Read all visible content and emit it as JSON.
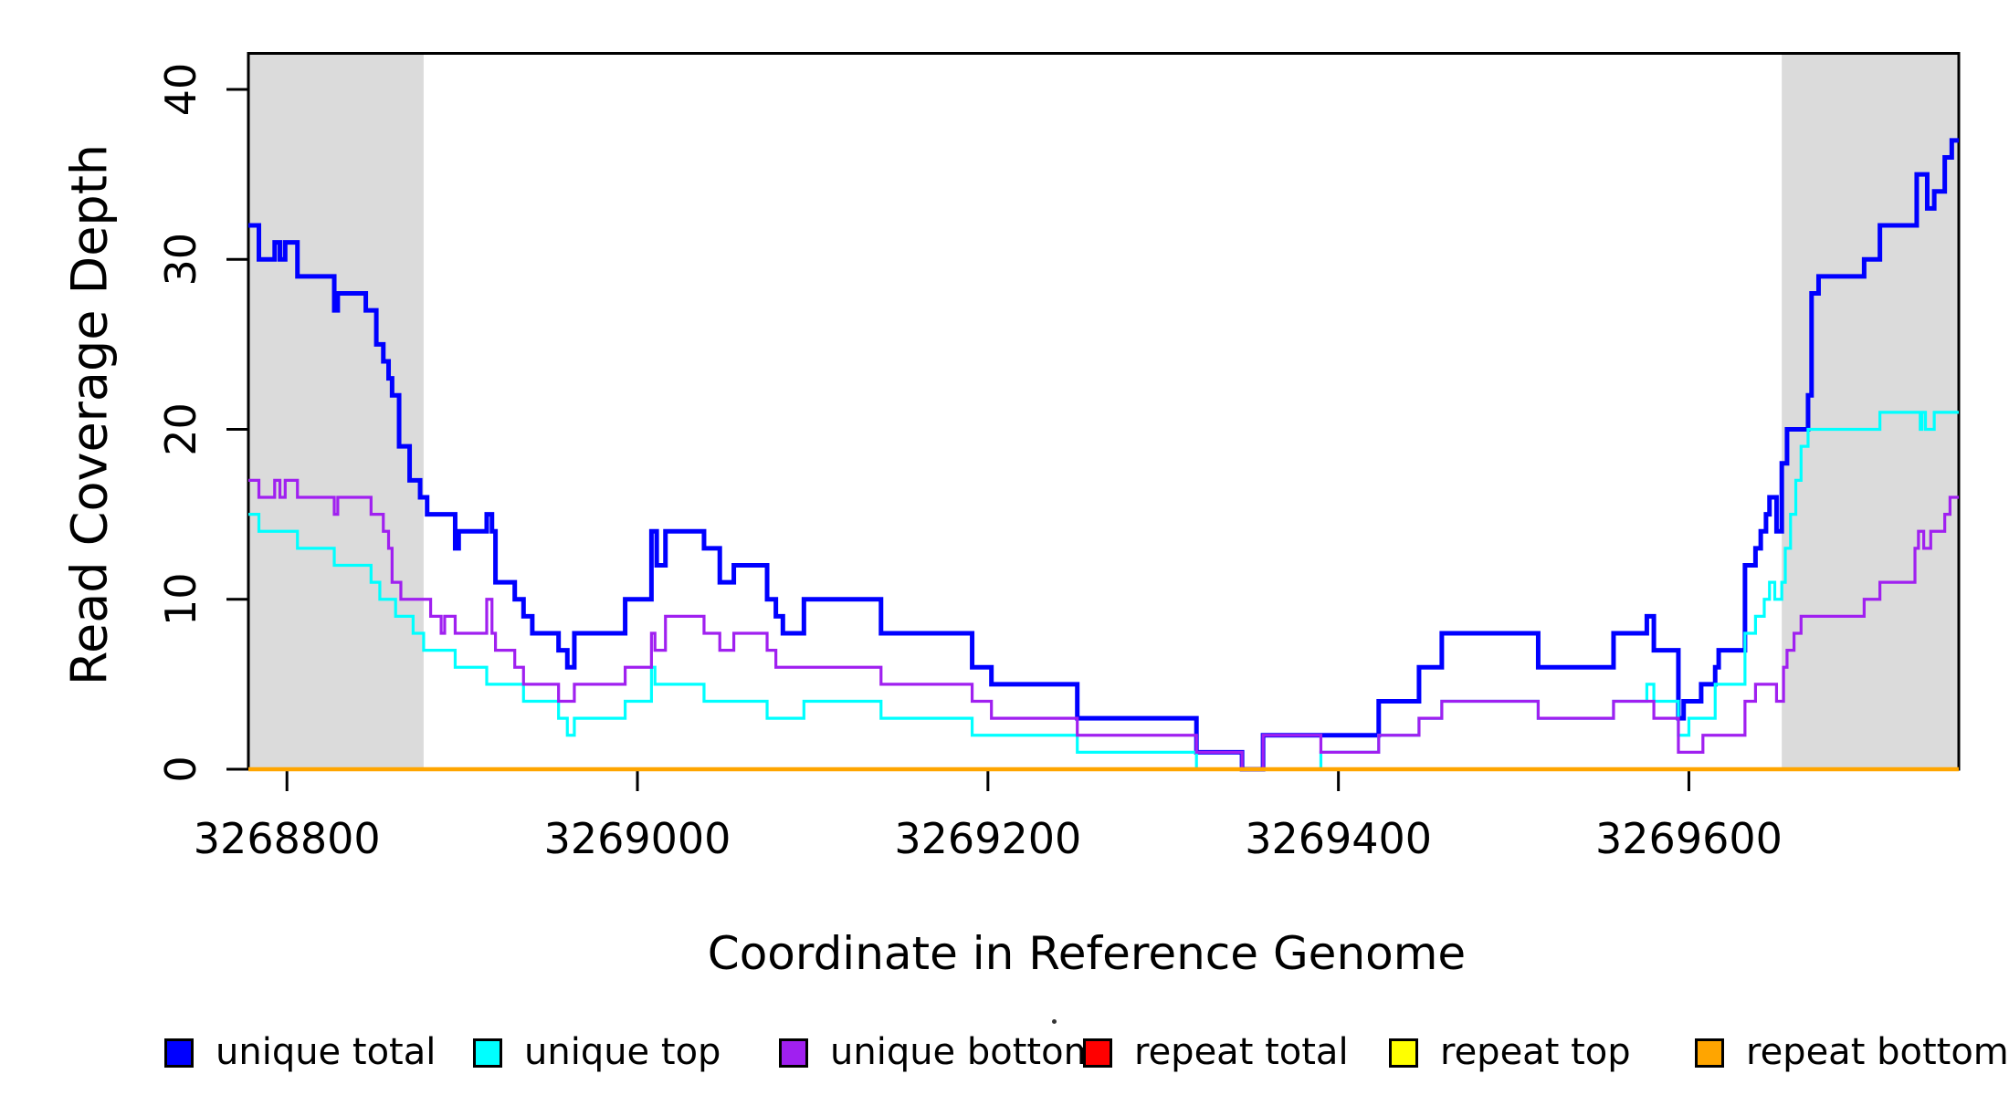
{
  "chart_data": {
    "type": "line",
    "step": true,
    "title": "",
    "xlabel": "Coordinate in Reference Genome",
    "ylabel": "Read Coverage Depth",
    "xlim": [
      3268778,
      3269754
    ],
    "ylim": [
      0,
      42.2
    ],
    "x_ticks": [
      "3268800",
      "3269000",
      "3269200",
      "3269400",
      "3269600"
    ],
    "x_tick_values": [
      3268800,
      3269000,
      3269200,
      3269400,
      3269600
    ],
    "y_ticks": [
      "0",
      "10",
      "20",
      "30",
      "40"
    ],
    "y_tick_values": [
      0,
      10,
      20,
      30,
      40
    ],
    "grid": false,
    "legend_position": "bottom",
    "plot_background": "#ffffff",
    "border_color": "#000000",
    "shaded_regions": [
      {
        "name": "left-repeat-region",
        "x0": 3268778,
        "x1": 3268878,
        "color": "#DBDBDB"
      },
      {
        "name": "right-repeat-region",
        "x0": 3269653,
        "x1": 3269754,
        "color": "#DBDBDB"
      }
    ],
    "series": [
      {
        "name": "unique total",
        "color": "#0000FF",
        "width": 5,
        "points": [
          [
            3268778,
            32
          ],
          [
            3268784,
            30
          ],
          [
            3268793,
            31
          ],
          [
            3268796,
            30
          ],
          [
            3268799,
            31
          ],
          [
            3268806,
            29
          ],
          [
            3268827,
            27
          ],
          [
            3268829,
            28
          ],
          [
            3268845,
            27
          ],
          [
            3268851,
            25
          ],
          [
            3268855,
            24
          ],
          [
            3268858,
            23
          ],
          [
            3268860,
            22
          ],
          [
            3268864,
            19
          ],
          [
            3268870,
            17
          ],
          [
            3268876,
            16
          ],
          [
            3268880,
            15
          ],
          [
            3268896,
            13
          ],
          [
            3268898,
            14
          ],
          [
            3268914,
            15
          ],
          [
            3268917,
            14
          ],
          [
            3268919,
            11
          ],
          [
            3268930,
            10
          ],
          [
            3268935,
            9
          ],
          [
            3268940,
            8
          ],
          [
            3268955,
            7
          ],
          [
            3268960,
            6
          ],
          [
            3268964,
            8
          ],
          [
            3268993,
            10
          ],
          [
            3269008,
            14
          ],
          [
            3269011,
            12
          ],
          [
            3269016,
            14
          ],
          [
            3269038,
            13
          ],
          [
            3269047,
            11
          ],
          [
            3269055,
            12
          ],
          [
            3269074,
            10
          ],
          [
            3269079,
            9
          ],
          [
            3269083,
            8
          ],
          [
            3269095,
            10
          ],
          [
            3269139,
            8
          ],
          [
            3269191,
            6
          ],
          [
            3269202,
            5
          ],
          [
            3269251,
            3
          ],
          [
            3269319,
            1
          ],
          [
            3269345,
            0
          ],
          [
            3269357,
            2
          ],
          [
            3269423,
            4
          ],
          [
            3269446,
            6
          ],
          [
            3269459,
            8
          ],
          [
            3269514,
            6
          ],
          [
            3269557,
            8
          ],
          [
            3269576,
            9
          ],
          [
            3269580,
            7
          ],
          [
            3269594,
            3
          ],
          [
            3269597,
            4
          ],
          [
            3269607,
            5
          ],
          [
            3269615,
            6
          ],
          [
            3269617,
            7
          ],
          [
            3269632,
            12
          ],
          [
            3269638,
            13
          ],
          [
            3269641,
            14
          ],
          [
            3269644,
            15
          ],
          [
            3269646,
            16
          ],
          [
            3269650,
            14
          ],
          [
            3269653,
            18
          ],
          [
            3269656,
            20
          ],
          [
            3269668,
            22
          ],
          [
            3269670,
            28
          ],
          [
            3269674,
            29
          ],
          [
            3269700,
            30
          ],
          [
            3269709,
            32
          ],
          [
            3269730,
            35
          ],
          [
            3269736,
            33
          ],
          [
            3269740,
            34
          ],
          [
            3269746,
            36
          ],
          [
            3269750,
            37
          ]
        ]
      },
      {
        "name": "unique top",
        "color": "#00FFFF",
        "width": 3.2,
        "points": [
          [
            3268778,
            15
          ],
          [
            3268784,
            14
          ],
          [
            3268806,
            13
          ],
          [
            3268827,
            12
          ],
          [
            3268848,
            11
          ],
          [
            3268853,
            10
          ],
          [
            3268862,
            9
          ],
          [
            3268872,
            8
          ],
          [
            3268878,
            7
          ],
          [
            3268896,
            6
          ],
          [
            3268914,
            5
          ],
          [
            3268935,
            4
          ],
          [
            3268955,
            3
          ],
          [
            3268960,
            2
          ],
          [
            3268964,
            3
          ],
          [
            3268993,
            4
          ],
          [
            3269008,
            6
          ],
          [
            3269010,
            5
          ],
          [
            3269038,
            4
          ],
          [
            3269074,
            3
          ],
          [
            3269095,
            4
          ],
          [
            3269139,
            3
          ],
          [
            3269191,
            2
          ],
          [
            3269251,
            1
          ],
          [
            3269319,
            0
          ],
          [
            3269390,
            1
          ],
          [
            3269423,
            2
          ],
          [
            3269446,
            3
          ],
          [
            3269459,
            4
          ],
          [
            3269514,
            3
          ],
          [
            3269557,
            4
          ],
          [
            3269576,
            5
          ],
          [
            3269580,
            4
          ],
          [
            3269594,
            2
          ],
          [
            3269600,
            3
          ],
          [
            3269615,
            5
          ],
          [
            3269632,
            8
          ],
          [
            3269638,
            9
          ],
          [
            3269643,
            10
          ],
          [
            3269646,
            11
          ],
          [
            3269649,
            10
          ],
          [
            3269653,
            11
          ],
          [
            3269655,
            13
          ],
          [
            3269658,
            15
          ],
          [
            3269661,
            17
          ],
          [
            3269664,
            19
          ],
          [
            3269668,
            20
          ],
          [
            3269709,
            21
          ],
          [
            3269732,
            20
          ],
          [
            3269733,
            21
          ],
          [
            3269735,
            20
          ],
          [
            3269740,
            21
          ]
        ]
      },
      {
        "name": "unique bottom",
        "color": "#A020F0",
        "width": 3.2,
        "points": [
          [
            3268778,
            17
          ],
          [
            3268784,
            16
          ],
          [
            3268793,
            17
          ],
          [
            3268796,
            16
          ],
          [
            3268799,
            17
          ],
          [
            3268806,
            16
          ],
          [
            3268827,
            15
          ],
          [
            3268829,
            16
          ],
          [
            3268848,
            15
          ],
          [
            3268855,
            14
          ],
          [
            3268858,
            13
          ],
          [
            3268860,
            11
          ],
          [
            3268865,
            10
          ],
          [
            3268882,
            9
          ],
          [
            3268888,
            8
          ],
          [
            3268890,
            9
          ],
          [
            3268896,
            8
          ],
          [
            3268914,
            10
          ],
          [
            3268917,
            8
          ],
          [
            3268919,
            7
          ],
          [
            3268930,
            6
          ],
          [
            3268935,
            5
          ],
          [
            3268955,
            4
          ],
          [
            3268964,
            5
          ],
          [
            3268993,
            6
          ],
          [
            3269008,
            8
          ],
          [
            3269010,
            7
          ],
          [
            3269016,
            9
          ],
          [
            3269038,
            8
          ],
          [
            3269047,
            7
          ],
          [
            3269055,
            8
          ],
          [
            3269074,
            7
          ],
          [
            3269079,
            6
          ],
          [
            3269139,
            5
          ],
          [
            3269191,
            4
          ],
          [
            3269202,
            3
          ],
          [
            3269251,
            2
          ],
          [
            3269319,
            1
          ],
          [
            3269345,
            0
          ],
          [
            3269357,
            2
          ],
          [
            3269390,
            1
          ],
          [
            3269423,
            2
          ],
          [
            3269446,
            3
          ],
          [
            3269459,
            4
          ],
          [
            3269514,
            3
          ],
          [
            3269557,
            4
          ],
          [
            3269580,
            3
          ],
          [
            3269594,
            1
          ],
          [
            3269608,
            2
          ],
          [
            3269632,
            4
          ],
          [
            3269638,
            5
          ],
          [
            3269650,
            4
          ],
          [
            3269654,
            6
          ],
          [
            3269656,
            7
          ],
          [
            3269660,
            8
          ],
          [
            3269664,
            9
          ],
          [
            3269700,
            10
          ],
          [
            3269709,
            11
          ],
          [
            3269729,
            13
          ],
          [
            3269731,
            14
          ],
          [
            3269734,
            13
          ],
          [
            3269738,
            14
          ],
          [
            3269746,
            15
          ],
          [
            3269749,
            16
          ]
        ]
      },
      {
        "name": "repeat total",
        "color": "#FF0000",
        "width": 3,
        "points": [
          [
            3268778,
            0
          ]
        ]
      },
      {
        "name": "repeat top",
        "color": "#FFFF00",
        "width": 3,
        "points": [
          [
            3268778,
            0
          ]
        ]
      },
      {
        "name": "repeat bottom",
        "color": "#FFA500",
        "width": 4.5,
        "points": [
          [
            3268778,
            0
          ]
        ]
      }
    ]
  },
  "legend": {
    "items": [
      {
        "label": "unique total",
        "color": "#0000FF"
      },
      {
        "label": "unique top",
        "color": "#00FFFF"
      },
      {
        "label": "unique bottom",
        "color": "#A020F0"
      },
      {
        "label": "repeat total",
        "color": "#FF0000"
      },
      {
        "label": "repeat top",
        "color": "#FFFF00"
      },
      {
        "label": "repeat bottom",
        "color": "#FFA500"
      }
    ]
  }
}
